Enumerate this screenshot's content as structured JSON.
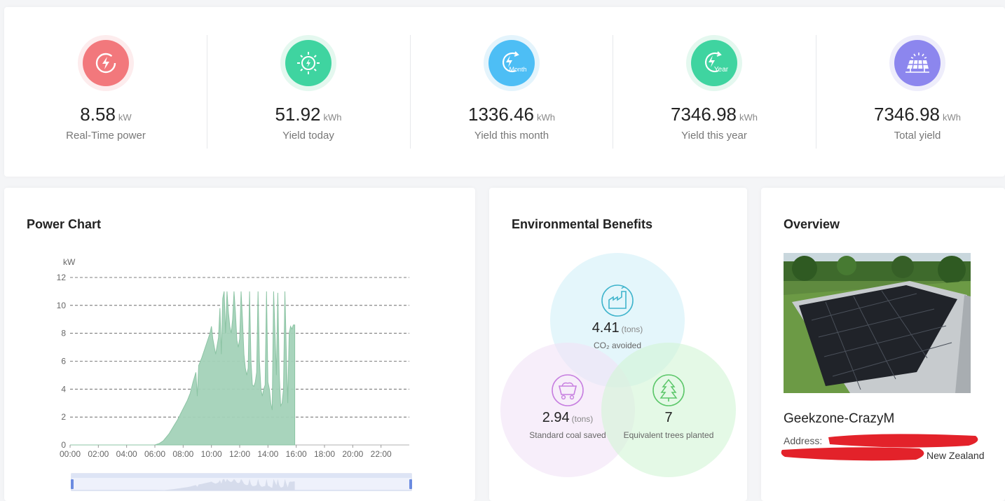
{
  "stats": [
    {
      "value": "8.58",
      "unit": "kW",
      "label": "Real-Time power",
      "icon": "lightning-icon",
      "color": "#f2787c",
      "ring": "#fdeced"
    },
    {
      "value": "51.92",
      "unit": "kWh",
      "label": "Yield today",
      "icon": "sun-lightning-icon",
      "color": "#3fd4a0",
      "ring": "#e4f8ef"
    },
    {
      "value": "1336.46",
      "unit": "kWh",
      "label": "Yield this month",
      "icon": "month-lightning-icon",
      "icon_text": "Month",
      "color": "#4dbef5",
      "ring": "#e4f4fc"
    },
    {
      "value": "7346.98",
      "unit": "kWh",
      "label": "Yield this year",
      "icon": "year-lightning-icon",
      "icon_text": "Year",
      "color": "#3fd4a0",
      "ring": "#e4f8ef"
    },
    {
      "value": "7346.98",
      "unit": "kWh",
      "label": "Total yield",
      "icon": "solar-panel-icon",
      "color": "#8c86ee",
      "ring": "#eeedfb"
    }
  ],
  "power_chart": {
    "title": "Power Chart",
    "chart_data": {
      "type": "area",
      "ylabel": "kW",
      "ylim": [
        0,
        12
      ],
      "yticks": [
        0,
        2,
        4,
        6,
        8,
        10,
        12
      ],
      "xlim": [
        0,
        24
      ],
      "xticks": [
        "00:00",
        "02:00",
        "04:00",
        "06:00",
        "08:00",
        "10:00",
        "12:00",
        "14:00",
        "16:00",
        "18:00",
        "20:00",
        "22:00"
      ],
      "grid": true,
      "color": "#a3d2b8",
      "series": [
        {
          "x": [
            0,
            6.0,
            6.3,
            6.6,
            7.0,
            7.3,
            7.6,
            7.9,
            8.1,
            8.3,
            8.5,
            8.7,
            8.9,
            9.0,
            9.1,
            9.3,
            9.5,
            9.7,
            9.9,
            10.0,
            10.1,
            10.3,
            10.5,
            10.6,
            10.7,
            10.8,
            10.9,
            11.0,
            11.1,
            11.2,
            11.3,
            11.4,
            11.5,
            11.6,
            11.7,
            11.8,
            11.9,
            12.0,
            12.1,
            12.2,
            12.3,
            12.4,
            12.5,
            12.6,
            12.7,
            12.8,
            12.9,
            13.0,
            13.1,
            13.2,
            13.3,
            13.4,
            13.5,
            13.6,
            13.7,
            13.8,
            13.9,
            14.0,
            14.1,
            14.2,
            14.3,
            14.4,
            14.5,
            14.6,
            14.7,
            14.8,
            14.9,
            15.0,
            15.1,
            15.2,
            15.3,
            15.4,
            15.5,
            15.6,
            15.7,
            15.8,
            15.9
          ],
          "y": [
            0,
            0,
            0.1,
            0.3,
            0.8,
            1.3,
            1.8,
            2.4,
            2.8,
            3.2,
            3.7,
            4.5,
            5.2,
            3.5,
            5.7,
            6.2,
            6.8,
            7.4,
            8.0,
            8.5,
            7.6,
            6.5,
            7.7,
            9.8,
            6.5,
            10.5,
            11.0,
            8.0,
            11.0,
            9.5,
            8.5,
            8.0,
            9.0,
            11.0,
            9.5,
            7.5,
            7.0,
            7.6,
            11.0,
            9.0,
            6.5,
            5.5,
            5.0,
            5.5,
            11.0,
            6.0,
            4.3,
            4.2,
            4.5,
            5.2,
            11.0,
            6.0,
            4.0,
            3.5,
            4.0,
            4.3,
            11.0,
            4.5,
            4.0,
            3.0,
            2.5,
            11.0,
            8.0,
            5.0,
            10.9,
            5.0,
            2.8,
            3.0,
            4.0,
            11.0,
            6.5,
            3.0,
            8.0,
            8.5,
            8.3,
            8.6,
            8.6
          ]
        }
      ]
    }
  },
  "environmental": {
    "title": "Environmental Benefits",
    "co2": {
      "value": "4.41",
      "unit": "(tons)",
      "label": "CO₂ avoided",
      "icon": "factory-icon",
      "color": "#3fb4cc"
    },
    "coal": {
      "value": "2.94",
      "unit": "(tons)",
      "label": "Standard coal saved",
      "icon": "coal-cart-icon",
      "color": "#c77fe0"
    },
    "trees": {
      "value": "7",
      "label": "Equivalent trees planted",
      "icon": "tree-icon",
      "color": "#5cc76a"
    }
  },
  "overview": {
    "title": "Overview",
    "plant_name": "Geekzone-CrazyM",
    "address_label": "Address:",
    "country": "New Zealand",
    "photo": "solar-roof-photo"
  }
}
